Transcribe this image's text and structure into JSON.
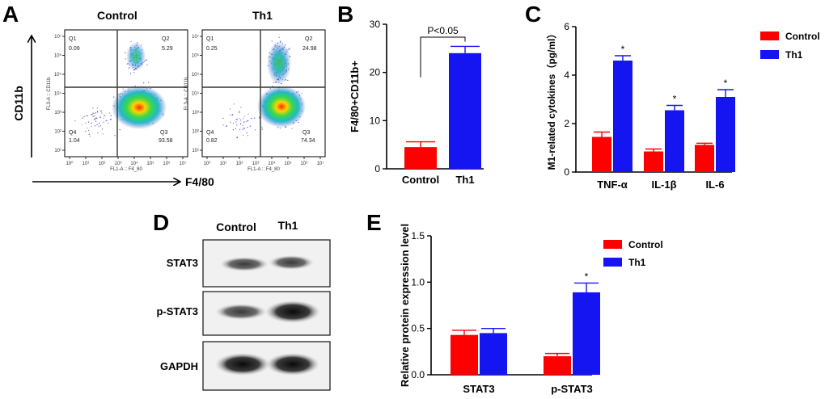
{
  "colors": {
    "control": "#ff0000",
    "th1": "#1515f2",
    "axis": "#000000"
  },
  "panel_labels": {
    "a": "A",
    "b": "B",
    "c": "C",
    "d": "D",
    "e": "E"
  },
  "panel_a": {
    "yaxis_label": "CD11b",
    "xaxis_label": "F4/80",
    "plots": [
      {
        "title": "Control",
        "q1_label": "Q1",
        "q1_value": "0.09",
        "q2_label": "Q2",
        "q2_value": "5.29",
        "q3_label": "Q3",
        "q3_value": "93.58",
        "q4_label": "Q4",
        "q4_value": "1.04",
        "xlabel": "FL1-A :: F4_80",
        "ylabel": "FL3-A :: CD11b"
      },
      {
        "title": "Th1",
        "q1_label": "Q1",
        "q1_value": "0.25",
        "q2_label": "Q2",
        "q2_value": "24.98",
        "q3_label": "Q3",
        "q3_value": "74.34",
        "q4_label": "Q4",
        "q4_value": "0.82",
        "xlabel": "FL1-A :: F4_80",
        "ylabel": "FL3-A :: CD11b"
      }
    ],
    "xticks": [
      "10⁰",
      "10¹",
      "10²",
      "10³",
      "10⁴",
      "10⁵",
      "10⁶",
      "10⁷"
    ],
    "yticks": [
      "10¹",
      "10²",
      "10³",
      "10⁴",
      "10⁵",
      "10⁶",
      "10⁷"
    ]
  },
  "chart_data": [
    {
      "type": "bar",
      "panel": "B",
      "ylabel": "F4/80+CD11b+",
      "categories": [
        "Control",
        "Th1"
      ],
      "values": [
        4.5,
        24
      ],
      "errors": [
        1.1,
        1.4
      ],
      "ylim": [
        0,
        30
      ],
      "yticks": [
        "0",
        "10",
        "20",
        "30"
      ],
      "annotation": "P<0.05"
    },
    {
      "type": "bar",
      "panel": "C",
      "ylabel": "M1-related cytokines（pg/ml）",
      "categories": [
        "TNF-α",
        "IL-1β",
        "IL-6"
      ],
      "series": [
        {
          "name": "Control",
          "values": [
            1.45,
            0.85,
            1.12
          ],
          "errors": [
            0.2,
            0.1,
            0.07
          ]
        },
        {
          "name": "Th1",
          "values": [
            4.6,
            2.55,
            3.1
          ],
          "errors": [
            0.2,
            0.2,
            0.3
          ]
        }
      ],
      "ylim": [
        0,
        6
      ],
      "yticks": [
        "0",
        "2",
        "4",
        "6"
      ],
      "significance": [
        "*",
        "*",
        "*"
      ],
      "legend_position": "top-right"
    },
    {
      "type": "bar",
      "panel": "E",
      "ylabel": "Relative protein expression level",
      "categories": [
        "STAT3",
        "p-STAT3"
      ],
      "series": [
        {
          "name": "Control",
          "values": [
            0.43,
            0.2
          ],
          "errors": [
            0.05,
            0.03
          ]
        },
        {
          "name": "Th1",
          "values": [
            0.45,
            0.89
          ],
          "errors": [
            0.05,
            0.1
          ]
        }
      ],
      "ylim": [
        0,
        1.5
      ],
      "yticks": [
        "0.0",
        "0.5",
        "1.0",
        "1.5"
      ],
      "significance": [
        "",
        "*"
      ],
      "legend_position": "top-right"
    }
  ],
  "panel_d": {
    "columns": [
      "Control",
      "Th1"
    ],
    "rows": [
      "STAT3",
      "p-STAT3",
      "GAPDH"
    ]
  }
}
